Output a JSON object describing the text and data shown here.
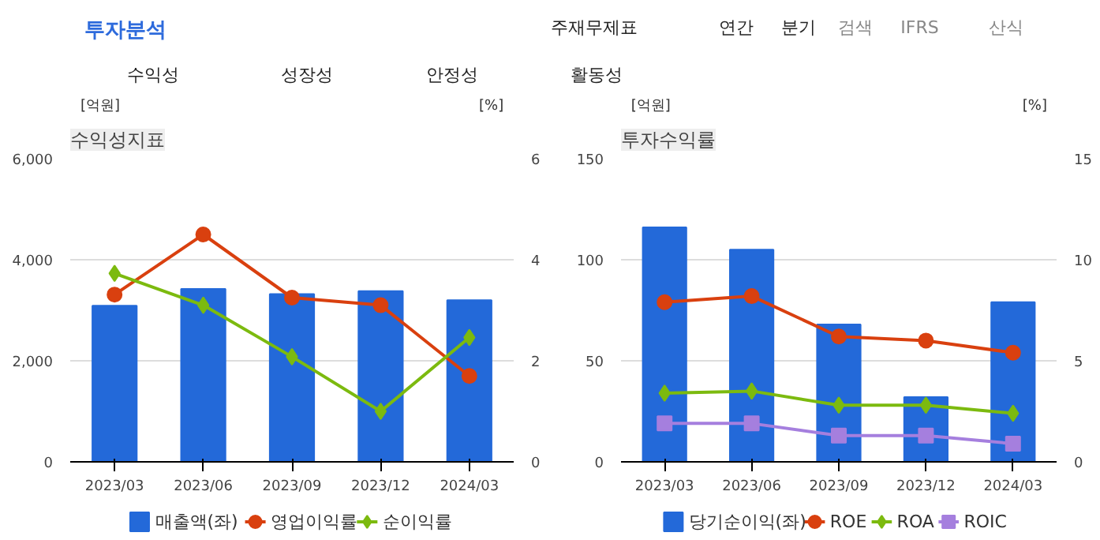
{
  "chart_data": [
    {
      "type": "other",
      "annotations": [
        "투자분석",
        "주재무제표",
        "연간",
        "분기",
        "검색",
        "IFRS",
        "산식",
        "수익성",
        "성장성",
        "안정성",
        "활동성"
      ]
    },
    {
      "type": "bar",
      "title": "수익성지표",
      "ylabel": "[억원]",
      "y2label": "[%]",
      "categories": [
        "2023/03",
        "2023/06",
        "2023/09",
        "2023/12",
        "2024/03"
      ],
      "ylim": [
        0,
        6000
      ],
      "yticks": [
        0,
        {
          "value": 2000,
          "label": "2,000"
        },
        {
          "value": 4000,
          "label": "4,000"
        },
        {
          "value": 6000,
          "label": "6,000"
        }
      ],
      "y2lim": [
        0,
        6
      ],
      "y2ticks": [
        0,
        2,
        4,
        6
      ],
      "grid": "y",
      "legend": "bottom",
      "series": [
        {
          "name": "매출액(좌)",
          "type": "bar",
          "color": "#2369d9",
          "values": [
            3090,
            3420,
            3320,
            3380,
            3200
          ]
        },
        {
          "name": "영업이익률",
          "type": "line",
          "axis": "y2",
          "marker": "circle",
          "color": "#d9400f",
          "values": [
            3.31,
            4.5,
            3.25,
            3.1,
            1.7
          ]
        },
        {
          "name": "순이익률",
          "type": "line",
          "axis": "y2",
          "marker": "diamond",
          "color": "#7cba0f",
          "values": [
            3.73,
            3.1,
            2.08,
            1.0,
            2.46
          ]
        }
      ]
    },
    {
      "type": "bar",
      "title": "투자수익률",
      "ylabel": "[억원]",
      "y2label": "[%]",
      "categories": [
        "2023/03",
        "2023/06",
        "2023/09",
        "2023/12",
        "2024/03"
      ],
      "ylim": [
        0,
        150
      ],
      "yticks": [
        0,
        50,
        100,
        150
      ],
      "y2lim": [
        0,
        15
      ],
      "y2ticks": [
        0,
        5,
        10,
        15
      ],
      "grid": "y",
      "legend": "bottom",
      "series": [
        {
          "name": "당기순이익(좌)",
          "type": "bar",
          "color": "#2369d9",
          "values": [
            116,
            105,
            68,
            32,
            79
          ]
        },
        {
          "name": "ROE",
          "type": "line",
          "axis": "y2",
          "marker": "circle",
          "color": "#d9400f",
          "values": [
            7.9,
            8.2,
            6.2,
            6.0,
            5.4
          ]
        },
        {
          "name": "ROA",
          "type": "line",
          "axis": "y2",
          "marker": "diamond",
          "color": "#7cba0f",
          "values": [
            3.4,
            3.5,
            2.8,
            2.8,
            2.4
          ]
        },
        {
          "name": "ROIC",
          "type": "line",
          "axis": "y2",
          "marker": "square",
          "color": "#a57fde",
          "values": [
            1.9,
            1.9,
            1.3,
            1.3,
            0.9
          ]
        }
      ]
    }
  ]
}
